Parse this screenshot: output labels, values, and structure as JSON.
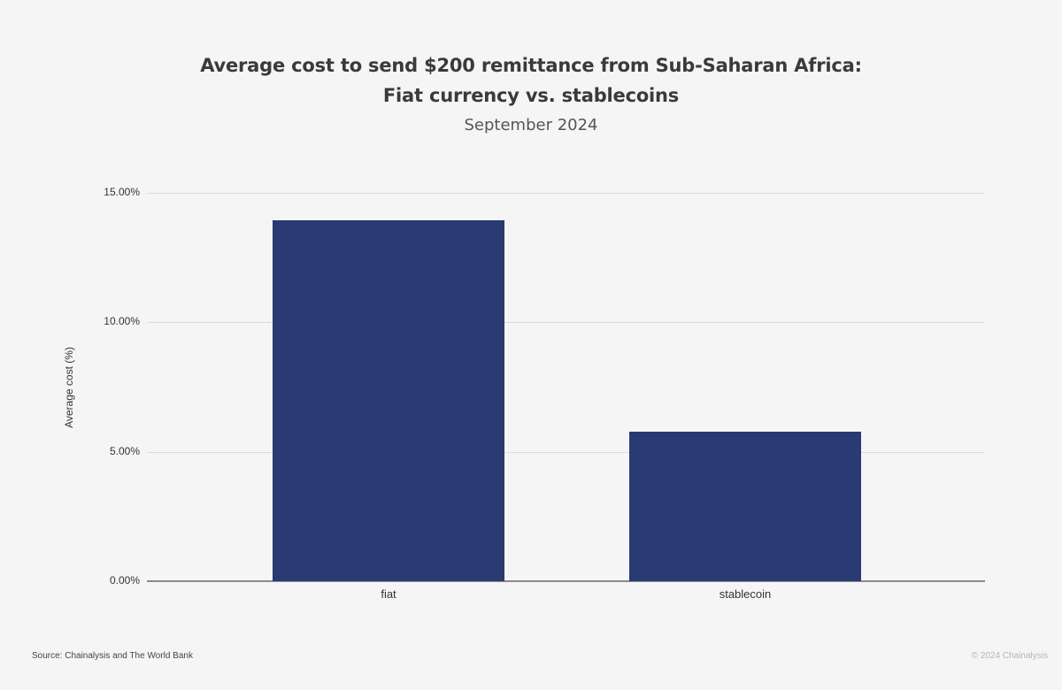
{
  "header": {
    "title_line1": "Average cost to send $200 remittance from Sub-Saharan Africa:",
    "title_line2": "Fiat currency vs. stablecoins",
    "subtitle": "September 2024"
  },
  "axis": {
    "ylabel": "Average cost (%)",
    "yticks": [
      "0.00%",
      "5.00%",
      "10.00%",
      "15.00%"
    ],
    "xticks": [
      "fiat",
      "stablecoin"
    ]
  },
  "footer": {
    "source": "Source: Chainalysis and The World Bank",
    "copyright": "© 2024 Chainalysis"
  },
  "colors": {
    "bar": "#293b72",
    "background": "#f5f5f5"
  },
  "chart_data": {
    "type": "bar",
    "title": "Average cost to send $200 remittance from Sub-Saharan Africa: Fiat currency vs. stablecoins",
    "subtitle": "September 2024",
    "categories": [
      "fiat",
      "stablecoin"
    ],
    "values": [
      13.94,
      5.77
    ],
    "xlabel": "",
    "ylabel": "Average cost (%)",
    "ylim": [
      0,
      15
    ],
    "yticks": [
      0,
      5,
      10,
      15
    ],
    "ytick_format": "0.00%",
    "grid": true,
    "legend": null,
    "source": "Source: Chainalysis and The World Bank"
  }
}
